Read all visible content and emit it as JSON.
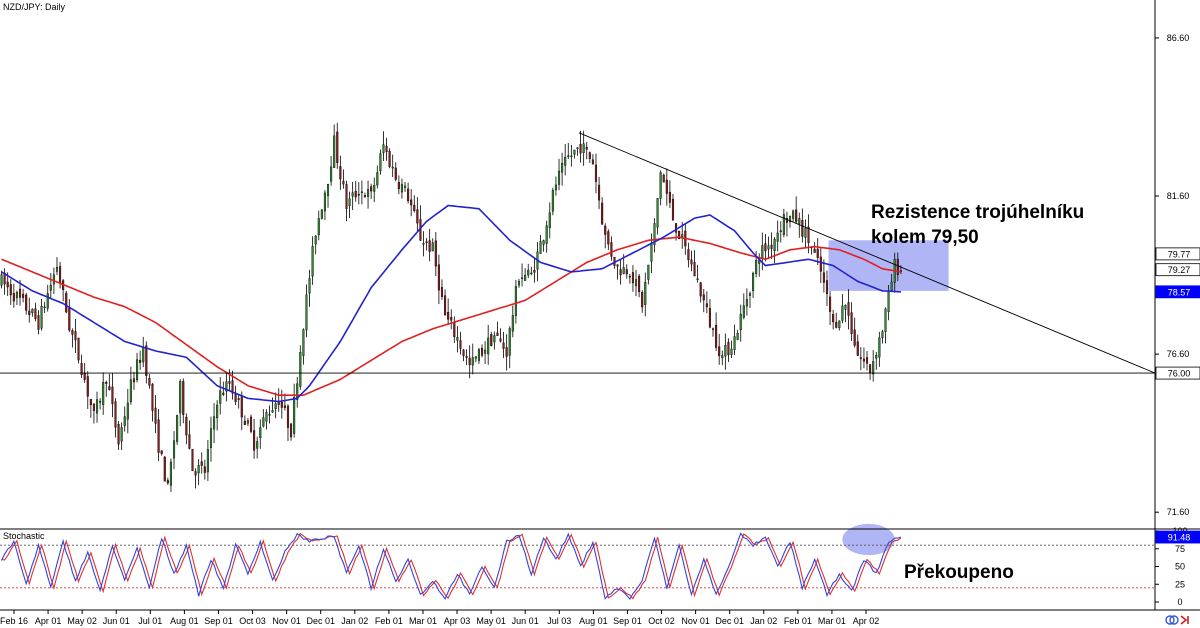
{
  "chart_data": {
    "type": "candlestick",
    "title": "NZD/JPY: Daily",
    "indicator_label": "Stochastic",
    "price_axis": {
      "ticks": [
        86.6,
        81.6,
        76.6,
        71.6
      ],
      "tick_labels": [
        "86.60",
        "81.60",
        "76.60",
        "71.60"
      ],
      "ylim": [
        71.1,
        87.8
      ]
    },
    "price_markers": [
      {
        "label": "79.77",
        "value": 79.77,
        "style": "white"
      },
      {
        "label": "79.27",
        "value": 79.27,
        "style": "white"
      },
      {
        "label": "78.57",
        "value": 78.57,
        "style": "blue"
      },
      {
        "label": "76.00",
        "value": 76.0,
        "style": "white"
      }
    ],
    "stoch_axis": {
      "ticks": [
        100,
        75,
        50,
        25,
        0
      ],
      "tick_labels": [
        "100",
        "75",
        "50",
        "25",
        "0"
      ],
      "ylim": [
        0,
        100
      ],
      "levels": [
        80,
        20
      ],
      "current": {
        "label": "91.48",
        "value": 91.48
      }
    },
    "x_labels": [
      "Feb 16",
      "Apr 01",
      "May 02",
      "Jun 01",
      "Jul 01",
      "Aug 01",
      "Sep 01",
      "Oct 03",
      "Nov 01",
      "Dec 01",
      "Jan 02",
      "Feb 01",
      "Mar 01",
      "Apr 03",
      "May 01",
      "Jun 01",
      "Jul 03",
      "Aug 01",
      "Sep 01",
      "Oct 02",
      "Nov 01",
      "Dec 01",
      "Jan 02",
      "Feb 01",
      "Mar 01",
      "Apr 02"
    ],
    "price_anchors": [
      [
        0,
        78.9
      ],
      [
        6,
        78.3
      ],
      [
        12,
        77.6
      ],
      [
        18,
        79.4
      ],
      [
        22,
        77.5
      ],
      [
        26,
        76.2
      ],
      [
        30,
        74.6
      ],
      [
        34,
        75.9
      ],
      [
        38,
        73.8
      ],
      [
        42,
        75.6
      ],
      [
        46,
        76.8
      ],
      [
        50,
        74.2
      ],
      [
        54,
        72.3
      ],
      [
        58,
        75.5
      ],
      [
        62,
        73.0
      ],
      [
        66,
        72.9
      ],
      [
        70,
        75.2
      ],
      [
        74,
        75.7
      ],
      [
        78,
        74.8
      ],
      [
        82,
        73.8
      ],
      [
        86,
        74.7
      ],
      [
        90,
        75.2
      ],
      [
        94,
        74.2
      ],
      [
        98,
        77.6
      ],
      [
        102,
        80.5
      ],
      [
        106,
        82.2
      ],
      [
        108,
        83.3
      ],
      [
        112,
        81.3
      ],
      [
        116,
        81.8
      ],
      [
        120,
        81.6
      ],
      [
        124,
        83.2
      ],
      [
        128,
        82.2
      ],
      [
        132,
        81.6
      ],
      [
        136,
        80.3
      ],
      [
        140,
        79.9
      ],
      [
        144,
        77.8
      ],
      [
        148,
        77.1
      ],
      [
        152,
        76.2
      ],
      [
        156,
        76.7
      ],
      [
        160,
        77.2
      ],
      [
        164,
        76.7
      ],
      [
        168,
        79.1
      ],
      [
        172,
        79.1
      ],
      [
        176,
        80.4
      ],
      [
        180,
        82.0
      ],
      [
        184,
        82.8
      ],
      [
        188,
        83.2
      ],
      [
        192,
        82.7
      ],
      [
        196,
        80.3
      ],
      [
        200,
        79.3
      ],
      [
        204,
        79.3
      ],
      [
        208,
        78.2
      ],
      [
        212,
        80.6
      ],
      [
        214,
        82.4
      ],
      [
        218,
        80.9
      ],
      [
        222,
        79.9
      ],
      [
        226,
        78.9
      ],
      [
        230,
        77.6
      ],
      [
        234,
        76.5
      ],
      [
        238,
        77.1
      ],
      [
        242,
        78.4
      ],
      [
        246,
        79.8
      ],
      [
        250,
        80.1
      ],
      [
        254,
        80.9
      ],
      [
        258,
        80.9
      ],
      [
        262,
        80.2
      ],
      [
        266,
        79.2
      ],
      [
        270,
        77.5
      ],
      [
        274,
        78.2
      ],
      [
        278,
        76.6
      ],
      [
        282,
        76.1
      ],
      [
        286,
        77.4
      ],
      [
        290,
        79.4
      ],
      [
        292,
        79.27
      ]
    ],
    "ma100_anchors": [
      [
        0,
        79.2
      ],
      [
        10,
        78.6
      ],
      [
        20,
        78.2
      ],
      [
        30,
        77.6
      ],
      [
        40,
        77.0
      ],
      [
        50,
        76.7
      ],
      [
        60,
        76.5
      ],
      [
        70,
        75.6
      ],
      [
        80,
        75.2
      ],
      [
        90,
        75.1
      ],
      [
        96,
        75.2
      ],
      [
        100,
        75.6
      ],
      [
        110,
        77.0
      ],
      [
        120,
        78.7
      ],
      [
        130,
        79.9
      ],
      [
        138,
        80.8
      ],
      [
        145,
        81.3
      ],
      [
        155,
        81.2
      ],
      [
        165,
        80.2
      ],
      [
        175,
        79.5
      ],
      [
        185,
        79.2
      ],
      [
        195,
        79.3
      ],
      [
        205,
        79.8
      ],
      [
        215,
        80.3
      ],
      [
        225,
        80.9
      ],
      [
        230,
        81.0
      ],
      [
        238,
        80.5
      ],
      [
        244,
        79.8
      ],
      [
        248,
        79.4
      ],
      [
        255,
        79.5
      ],
      [
        262,
        79.6
      ],
      [
        270,
        79.4
      ],
      [
        278,
        78.9
      ],
      [
        286,
        78.6
      ],
      [
        292,
        78.57
      ]
    ],
    "ma200_anchors": [
      [
        0,
        79.6
      ],
      [
        10,
        79.2
      ],
      [
        20,
        78.8
      ],
      [
        30,
        78.4
      ],
      [
        40,
        78.1
      ],
      [
        50,
        77.6
      ],
      [
        60,
        76.9
      ],
      [
        70,
        76.2
      ],
      [
        80,
        75.6
      ],
      [
        90,
        75.3
      ],
      [
        98,
        75.3
      ],
      [
        110,
        75.8
      ],
      [
        120,
        76.4
      ],
      [
        130,
        77.0
      ],
      [
        140,
        77.4
      ],
      [
        150,
        77.7
      ],
      [
        160,
        78.0
      ],
      [
        170,
        78.3
      ],
      [
        180,
        78.9
      ],
      [
        190,
        79.5
      ],
      [
        200,
        79.9
      ],
      [
        210,
        80.2
      ],
      [
        220,
        80.3
      ],
      [
        230,
        80.1
      ],
      [
        240,
        79.8
      ],
      [
        248,
        79.6
      ],
      [
        256,
        79.9
      ],
      [
        264,
        80.0
      ],
      [
        272,
        79.9
      ],
      [
        280,
        79.6
      ],
      [
        286,
        79.3
      ],
      [
        292,
        79.2
      ]
    ],
    "stoch_anchors": [
      [
        0,
        60
      ],
      [
        4,
        85
      ],
      [
        8,
        25
      ],
      [
        12,
        80
      ],
      [
        16,
        20
      ],
      [
        20,
        85
      ],
      [
        24,
        30
      ],
      [
        28,
        70
      ],
      [
        32,
        15
      ],
      [
        36,
        80
      ],
      [
        40,
        30
      ],
      [
        44,
        75
      ],
      [
        48,
        20
      ],
      [
        52,
        90
      ],
      [
        56,
        40
      ],
      [
        60,
        80
      ],
      [
        64,
        10
      ],
      [
        68,
        60
      ],
      [
        72,
        20
      ],
      [
        76,
        80
      ],
      [
        80,
        40
      ],
      [
        84,
        85
      ],
      [
        88,
        30
      ],
      [
        92,
        70
      ],
      [
        96,
        95
      ],
      [
        100,
        85
      ],
      [
        104,
        90
      ],
      [
        108,
        92
      ],
      [
        112,
        40
      ],
      [
        116,
        80
      ],
      [
        120,
        20
      ],
      [
        124,
        75
      ],
      [
        128,
        30
      ],
      [
        132,
        60
      ],
      [
        136,
        10
      ],
      [
        140,
        30
      ],
      [
        144,
        5
      ],
      [
        148,
        40
      ],
      [
        152,
        10
      ],
      [
        156,
        50
      ],
      [
        160,
        20
      ],
      [
        164,
        85
      ],
      [
        168,
        95
      ],
      [
        172,
        40
      ],
      [
        176,
        90
      ],
      [
        180,
        60
      ],
      [
        184,
        95
      ],
      [
        188,
        50
      ],
      [
        192,
        85
      ],
      [
        196,
        5
      ],
      [
        200,
        20
      ],
      [
        204,
        5
      ],
      [
        208,
        30
      ],
      [
        212,
        90
      ],
      [
        216,
        20
      ],
      [
        220,
        80
      ],
      [
        224,
        10
      ],
      [
        228,
        60
      ],
      [
        232,
        10
      ],
      [
        236,
        50
      ],
      [
        240,
        95
      ],
      [
        244,
        80
      ],
      [
        248,
        90
      ],
      [
        252,
        50
      ],
      [
        256,
        85
      ],
      [
        260,
        20
      ],
      [
        264,
        60
      ],
      [
        268,
        10
      ],
      [
        272,
        40
      ],
      [
        276,
        15
      ],
      [
        280,
        60
      ],
      [
        284,
        40
      ],
      [
        288,
        85
      ],
      [
        292,
        91.48
      ]
    ],
    "trendlines": [
      {
        "from": [
          188,
          83.6
        ],
        "to": [
          375,
          76.0
        ]
      },
      {
        "from": [
          0,
          76.0
        ],
        "to": [
          375,
          76.0
        ]
      }
    ],
    "highlights": [
      {
        "type": "box",
        "x": [
          269,
          308
        ],
        "y": [
          78.6,
          80.2
        ]
      },
      {
        "type": "ellipse",
        "cx": 282,
        "cy": 88,
        "rx": 8.5,
        "ry": 22
      }
    ]
  },
  "annotations": {
    "resistance_line1": "Rezistence trojúhelníku",
    "resistance_line2": "kolem 79,50",
    "overbought": "Překoupeno"
  },
  "colors": {
    "bull": "#2e8b2e",
    "bear": "#8b1a1a",
    "ma100": "#2222cc",
    "ma200": "#e02020",
    "stoch_k": "#3344dd",
    "stoch_d": "#e03030",
    "highlight": "#6f79ee",
    "marker_blue": "#0000ff"
  }
}
